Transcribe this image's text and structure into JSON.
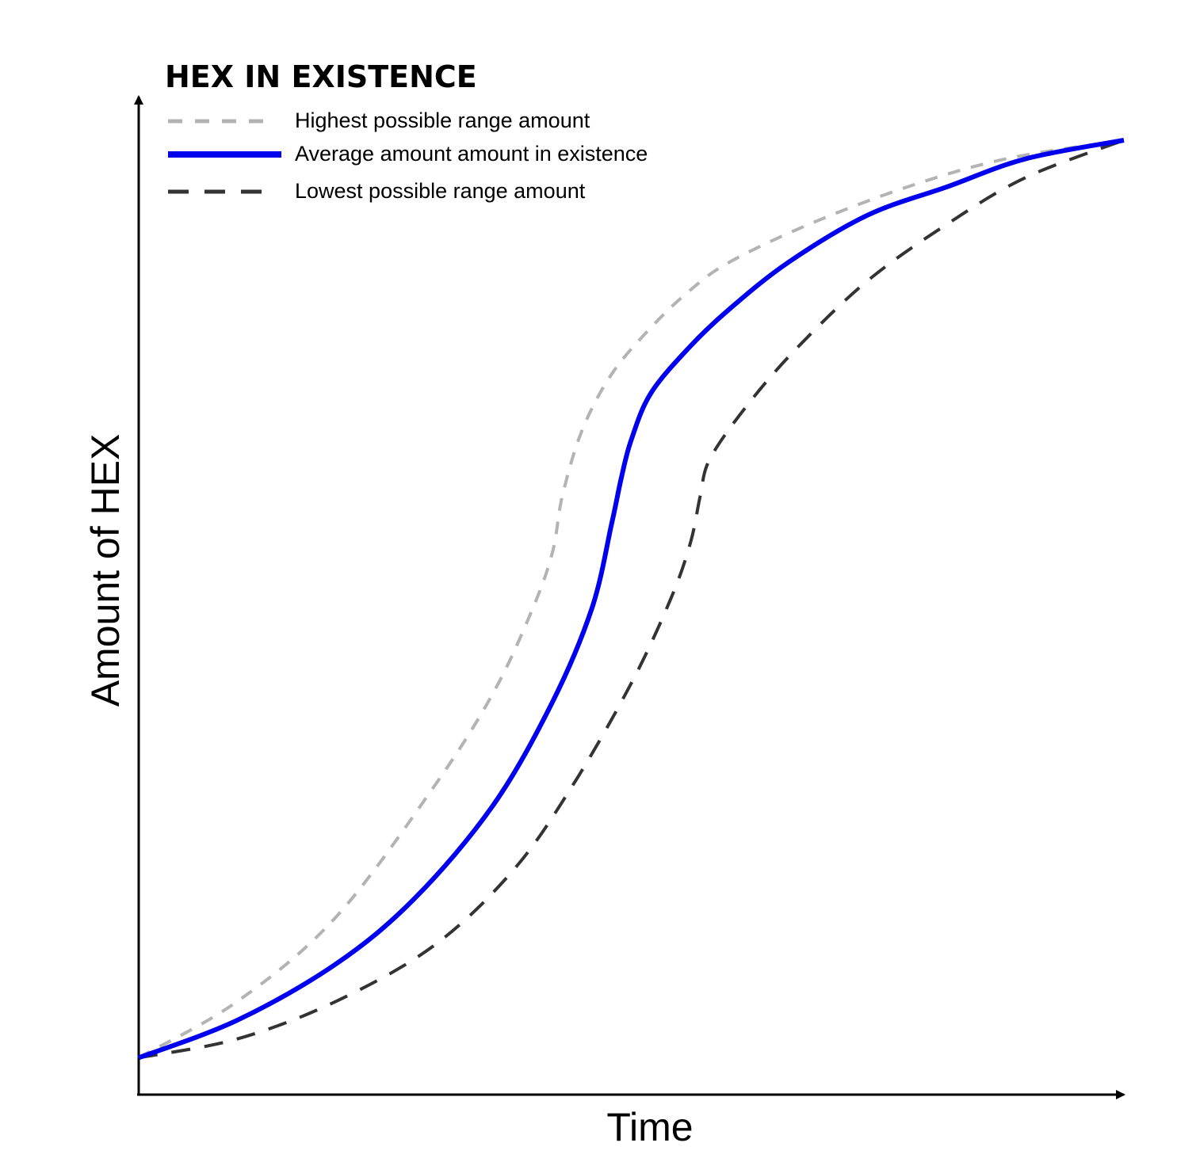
{
  "chart_data": {
    "type": "line",
    "title": "HEX IN EXISTENCE",
    "xlabel": "Time",
    "ylabel": "Amount of HEX",
    "xlim": [
      0,
      100
    ],
    "ylim": [
      0,
      100
    ],
    "ticks": "none",
    "grid": false,
    "legend_position": "top-left",
    "series": [
      {
        "name": "Highest possible range amount",
        "color": "#b3b3b3",
        "style": "dashed",
        "x": [
          0,
          10,
          20,
          30,
          36,
          40,
          42,
          43,
          45,
          48,
          52,
          56,
          60,
          68,
          78,
          88,
          100
        ],
        "y": [
          2,
          8,
          17,
          31,
          41,
          50,
          56,
          62,
          69,
          75,
          80,
          84,
          87,
          91,
          95,
          98,
          100
        ]
      },
      {
        "name": "Average amount amount in existence",
        "color": "#0000ee",
        "style": "solid",
        "x": [
          0,
          10,
          20,
          28,
          36,
          42,
          46,
          48,
          49,
          50,
          52,
          56,
          60,
          66,
          74,
          82,
          90,
          100
        ],
        "y": [
          2,
          6,
          12,
          19,
          29,
          40,
          50,
          59,
          64,
          68,
          73,
          78,
          82,
          87,
          92,
          95,
          98,
          100
        ]
      },
      {
        "name": "Lowest possible range amount",
        "color": "#333333",
        "style": "dashed",
        "x": [
          0,
          10,
          20,
          30,
          38,
          44,
          50,
          54,
          56,
          57,
          58,
          62,
          67,
          74,
          82,
          90,
          100
        ],
        "y": [
          2,
          4,
          8,
          14,
          22,
          31,
          42,
          51,
          57,
          62,
          66,
          72,
          78,
          85,
          91,
          96,
          100
        ]
      }
    ]
  }
}
